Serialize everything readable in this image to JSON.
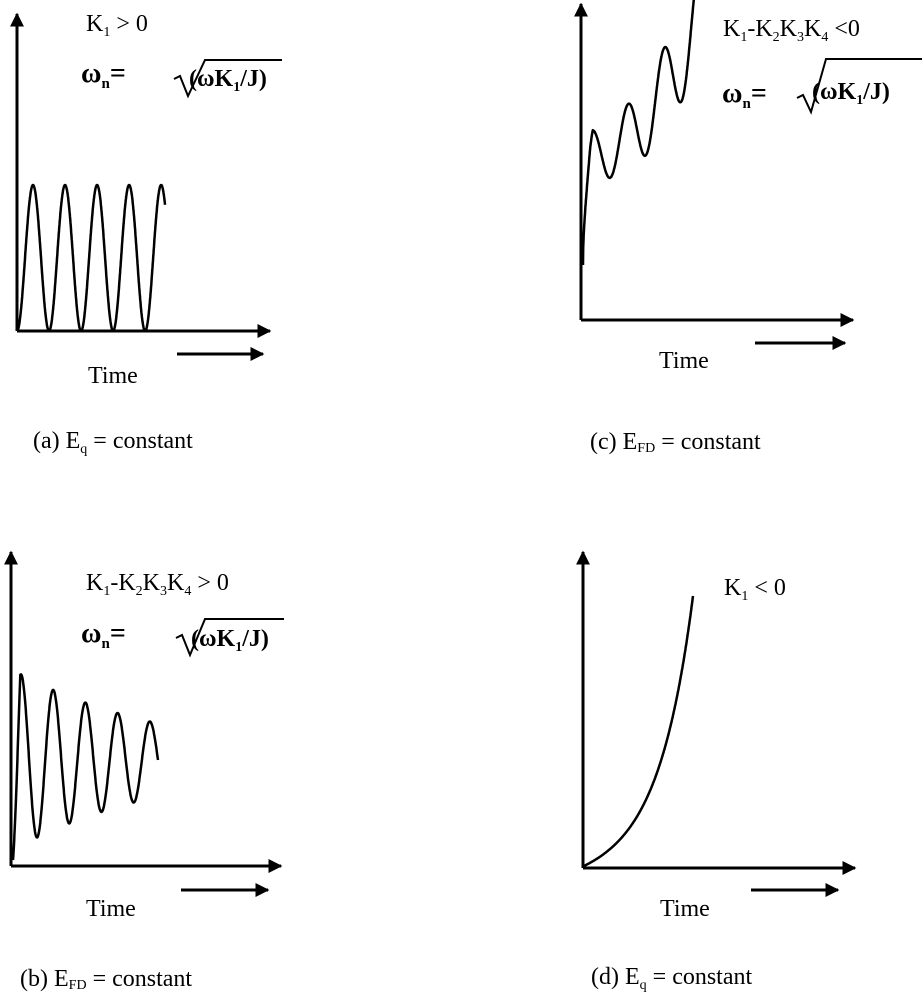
{
  "panels": [
    {
      "id": "a",
      "condition": {
        "base": "K",
        "sub": "1",
        "rest": " > 0"
      },
      "omega": {
        "symbol": "ω",
        "sub": "n",
        "eq": "=",
        "rad_lead": "(ωK",
        "rad_sub": "1",
        "rad_tail": "/J)"
      },
      "time_label": "Time",
      "caption": {
        "prefix": "(a)  E",
        "sub": "q",
        "rest": "  = constant"
      },
      "response": "sustained oscillation"
    },
    {
      "id": "b",
      "condition": {
        "t1": "K",
        "s1": "1",
        "t2": "-K",
        "s2": "2",
        "t3": "K",
        "s3": "3",
        "t4": "K",
        "s4": "4",
        "rest": " > 0"
      },
      "omega": {
        "symbol": "ω",
        "sub": "n",
        "eq": "=",
        "rad_lead": "(ωK",
        "rad_sub": "1",
        "rad_tail": "/J)"
      },
      "time_label": "Time",
      "caption": {
        "prefix": "(b)  E",
        "sub": "FD",
        "rest": " = constant"
      },
      "response": "damped oscillation"
    },
    {
      "id": "c",
      "condition": {
        "t1": "K",
        "s1": "1",
        "t2": "-K",
        "s2": "2",
        "t3": "K",
        "s3": "3",
        "t4": "K",
        "s4": "4",
        "rest": " <0"
      },
      "omega": {
        "symbol": "ω",
        "sub": "n",
        "eq": "=",
        "rad_lead": "(ωK",
        "rad_sub": "1",
        "rad_tail": "/J)"
      },
      "time_label": "Time",
      "caption": {
        "prefix": "(c)  E",
        "sub": "FD",
        "rest": " = constant"
      },
      "response": "growing oscillation with rising trend"
    },
    {
      "id": "d",
      "condition": {
        "base": "K",
        "sub": "1",
        "rest": " < 0"
      },
      "time_label": "Time",
      "caption": {
        "prefix": "(d)  E",
        "sub": "q",
        "rest": "  = constant"
      },
      "response": "monotonic growth"
    }
  ]
}
